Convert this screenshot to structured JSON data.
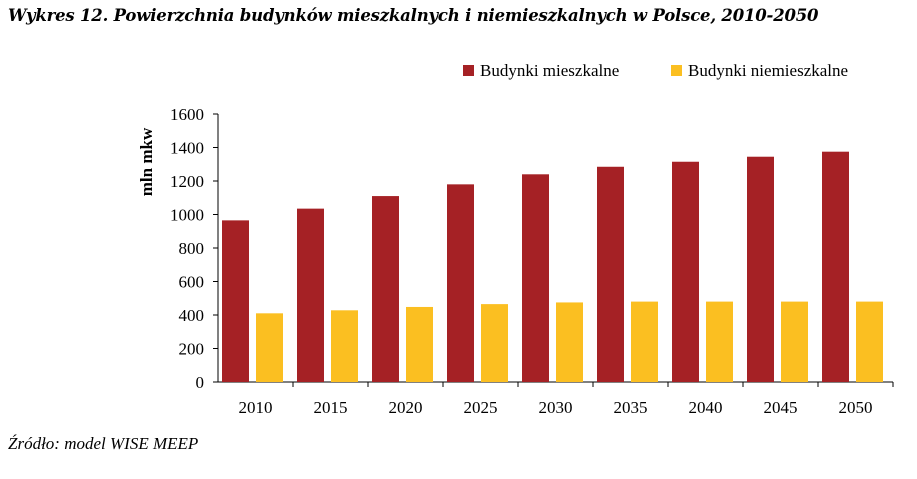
{
  "title": "Wykres 12. Powierzchnia budynków mieszkalnych i niemieszkalnych w Polsce, 2010-2050",
  "source": "Źródło: model WISE MEEP",
  "chart_data": {
    "type": "bar",
    "categories": [
      "2010",
      "2015",
      "2020",
      "2025",
      "2030",
      "2035",
      "2040",
      "2045",
      "2050"
    ],
    "series": [
      {
        "name": "Budynki mieszkalne",
        "color": "#a52125",
        "values": [
          965,
          1035,
          1110,
          1180,
          1240,
          1285,
          1315,
          1345,
          1375
        ]
      },
      {
        "name": "Budynki niemieszkalne",
        "color": "#fbbf21",
        "values": [
          410,
          428,
          448,
          465,
          475,
          480,
          480,
          480,
          480
        ]
      }
    ],
    "ylabel": "mln mkw",
    "xlabel": "",
    "ylim": [
      0,
      1600
    ],
    "yticks": [
      0,
      200,
      400,
      600,
      800,
      1000,
      1200,
      1400,
      1600
    ],
    "grid": false,
    "legend_position": "top-right"
  }
}
